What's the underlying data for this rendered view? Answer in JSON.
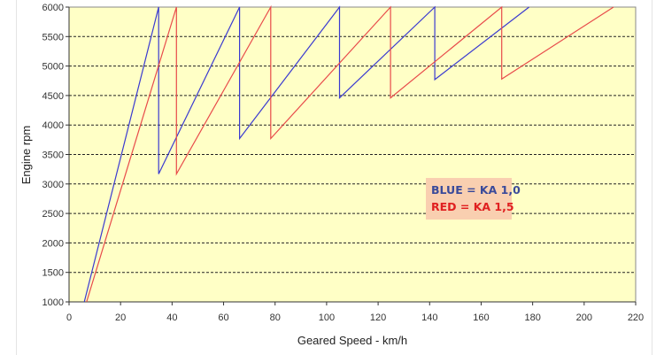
{
  "chart_data": {
    "type": "line",
    "xlabel": "Geared Speed - km/h",
    "ylabel": "Engine rpm",
    "xlim": [
      0,
      220
    ],
    "ylim": [
      1000,
      6000
    ],
    "xticks": [
      0,
      20,
      40,
      60,
      80,
      100,
      120,
      140,
      160,
      180,
      200,
      220
    ],
    "yticks": [
      1000,
      1500,
      2000,
      2500,
      3000,
      3500,
      4000,
      4500,
      5000,
      5500,
      6000
    ],
    "grid": {
      "horizontal": true,
      "style": "dashed"
    },
    "background": "#ffffc6",
    "legend": {
      "placement": "center-right",
      "background": "#f9cfb0",
      "entries": [
        {
          "text": "BLUE = KA 1,0",
          "color": "#3a4a9a"
        },
        {
          "text": "RED = KA 1,5",
          "color": "#e02020"
        }
      ]
    },
    "series": [
      {
        "color": "#3a3ad0",
        "x": [
          5.9,
          34.8,
          34.8,
          66.2,
          66.2,
          105,
          105,
          142,
          142,
          178.6
        ],
        "y": [
          1000,
          6000,
          3170,
          6000,
          3770,
          6000,
          4460,
          6000,
          4770,
          6000
        ]
      },
      {
        "color": "#e84a4a",
        "x": [
          6.8,
          41.7,
          41.7,
          78.3,
          78.3,
          124.8,
          124.8,
          168,
          168,
          211.4
        ],
        "y": [
          1000,
          6000,
          3170,
          6000,
          3770,
          6000,
          4460,
          6000,
          4780,
          6000
        ]
      }
    ]
  }
}
